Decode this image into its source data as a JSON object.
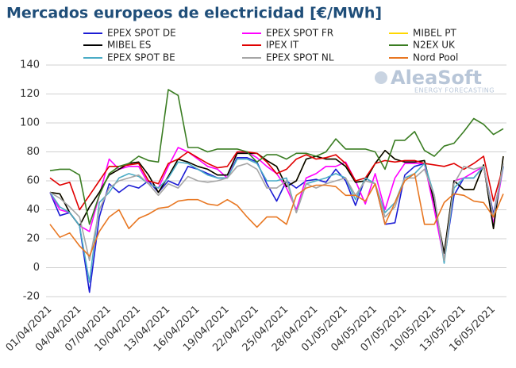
{
  "chart_data": {
    "type": "line",
    "title": "Mercados europeos de electricidad [€/MWh]",
    "watermark": [
      "AleaSoft",
      "ENERGY FORECASTING"
    ],
    "categories": [
      "01/04/2021",
      null,
      null,
      "04/04/2021",
      null,
      null,
      "07/04/2021",
      null,
      null,
      "10/04/2021",
      null,
      null,
      "13/04/2021",
      null,
      null,
      "16/04/2021",
      null,
      null,
      "19/04/2021",
      null,
      null,
      "22/04/2021",
      null,
      null,
      "25/04/2021",
      null,
      null,
      "28/04/2021",
      null,
      null,
      "01/05/2021",
      null,
      null,
      "04/05/2021",
      null,
      null,
      "07/05/2021",
      null,
      null,
      "10/05/2021",
      null,
      null,
      "13/05/2021",
      null,
      null,
      "16/05/2021",
      null
    ],
    "ylim": [
      -20,
      140
    ],
    "yticks": [
      -20,
      0,
      20,
      40,
      60,
      80,
      100,
      120,
      140
    ],
    "grid": true,
    "series": [
      {
        "name": "EPEX SPOT DE",
        "color": "#1c1cd4",
        "values": [
          52,
          36,
          38,
          29,
          -17,
          35,
          58,
          52,
          57,
          55,
          60,
          52,
          60,
          57,
          70,
          68,
          65,
          62,
          62,
          76,
          76,
          73,
          58,
          46,
          60,
          55,
          60,
          61,
          59,
          68,
          60,
          43,
          62,
          58,
          30,
          31,
          64,
          70,
          72,
          45,
          5,
          50,
          62,
          62,
          70,
          37,
          70
        ]
      },
      {
        "name": "EPEX SPOT FR",
        "color": "#ff00ff",
        "values": [
          52,
          40,
          38,
          29,
          25,
          50,
          75,
          68,
          70,
          70,
          58,
          55,
          70,
          83,
          80,
          75,
          70,
          68,
          62,
          80,
          80,
          76,
          70,
          65,
          55,
          40,
          62,
          65,
          70,
          70,
          73,
          60,
          44,
          65,
          40,
          62,
          72,
          72,
          72,
          40,
          5,
          60,
          62,
          66,
          70,
          30,
          70
        ]
      },
      {
        "name": "MIBEL PT",
        "color": "#ffd700",
        "values": [
          52,
          51,
          38,
          29,
          42,
          52,
          64,
          68,
          72,
          73,
          64,
          52,
          63,
          75,
          73,
          70,
          68,
          64,
          64,
          79,
          79,
          79,
          74,
          70,
          56,
          60,
          75,
          77,
          75,
          75,
          70,
          59,
          60,
          72,
          81,
          75,
          73,
          73,
          74,
          45,
          10,
          60,
          54,
          54,
          71,
          27,
          77
        ]
      },
      {
        "name": "MIBEL ES",
        "color": "#000000",
        "values": [
          52,
          51,
          38,
          29,
          42,
          52,
          64,
          68,
          72,
          73,
          64,
          52,
          63,
          75,
          73,
          70,
          68,
          64,
          64,
          79,
          79,
          79,
          74,
          70,
          56,
          60,
          75,
          77,
          75,
          75,
          70,
          59,
          60,
          72,
          81,
          75,
          73,
          73,
          74,
          45,
          10,
          60,
          54,
          54,
          71,
          27,
          77
        ]
      },
      {
        "name": "IPEX IT",
        "color": "#e00000",
        "values": [
          62,
          57,
          59,
          40,
          50,
          60,
          70,
          70,
          71,
          72,
          60,
          58,
          72,
          75,
          80,
          76,
          72,
          69,
          70,
          80,
          80,
          79,
          73,
          65,
          68,
          75,
          78,
          75,
          76,
          78,
          72,
          60,
          62,
          72,
          74,
          73,
          74,
          74,
          72,
          71,
          70,
          72,
          68,
          72,
          77,
          46,
          70
        ]
      },
      {
        "name": "N2EX UK",
        "color": "#3a7d22",
        "values": [
          67,
          68,
          68,
          64,
          30,
          50,
          65,
          70,
          72,
          77,
          74,
          73,
          123,
          119,
          83,
          83,
          80,
          82,
          82,
          82,
          80,
          73,
          78,
          78,
          75,
          79,
          79,
          77,
          80,
          89,
          82,
          82,
          82,
          80,
          68,
          88,
          88,
          94,
          81,
          77,
          84,
          86,
          94,
          103,
          99,
          92,
          96
        ]
      },
      {
        "name": "EPEX SPOT BE",
        "color": "#4bacc6",
        "values": [
          52,
          42,
          38,
          29,
          -10,
          45,
          52,
          62,
          65,
          63,
          58,
          55,
          62,
          73,
          72,
          68,
          64,
          62,
          62,
          75,
          75,
          72,
          60,
          60,
          62,
          38,
          58,
          60,
          62,
          65,
          62,
          47,
          62,
          58,
          38,
          45,
          62,
          65,
          72,
          50,
          3,
          55,
          62,
          62,
          70,
          35,
          70
        ]
      },
      {
        "name": "EPEX SPOT NL",
        "color": "#a6a6a6",
        "values": [
          52,
          48,
          42,
          35,
          5,
          40,
          55,
          60,
          62,
          64,
          58,
          50,
          58,
          55,
          63,
          60,
          59,
          60,
          62,
          70,
          72,
          68,
          55,
          55,
          60,
          38,
          58,
          55,
          58,
          60,
          62,
          50,
          60,
          58,
          35,
          42,
          62,
          62,
          68,
          50,
          5,
          58,
          70,
          68,
          70,
          35,
          72
        ]
      },
      {
        "name": "Nord Pool",
        "color": "#e87722",
        "values": [
          30,
          21,
          24,
          15,
          8,
          25,
          35,
          40,
          27,
          34,
          37,
          41,
          42,
          46,
          47,
          47,
          44,
          43,
          47,
          43,
          35,
          28,
          35,
          35,
          30,
          50,
          55,
          57,
          57,
          56,
          50,
          50,
          46,
          58,
          30,
          45,
          60,
          65,
          30,
          30,
          45,
          51,
          50,
          46,
          45,
          35,
          51
        ]
      }
    ]
  }
}
